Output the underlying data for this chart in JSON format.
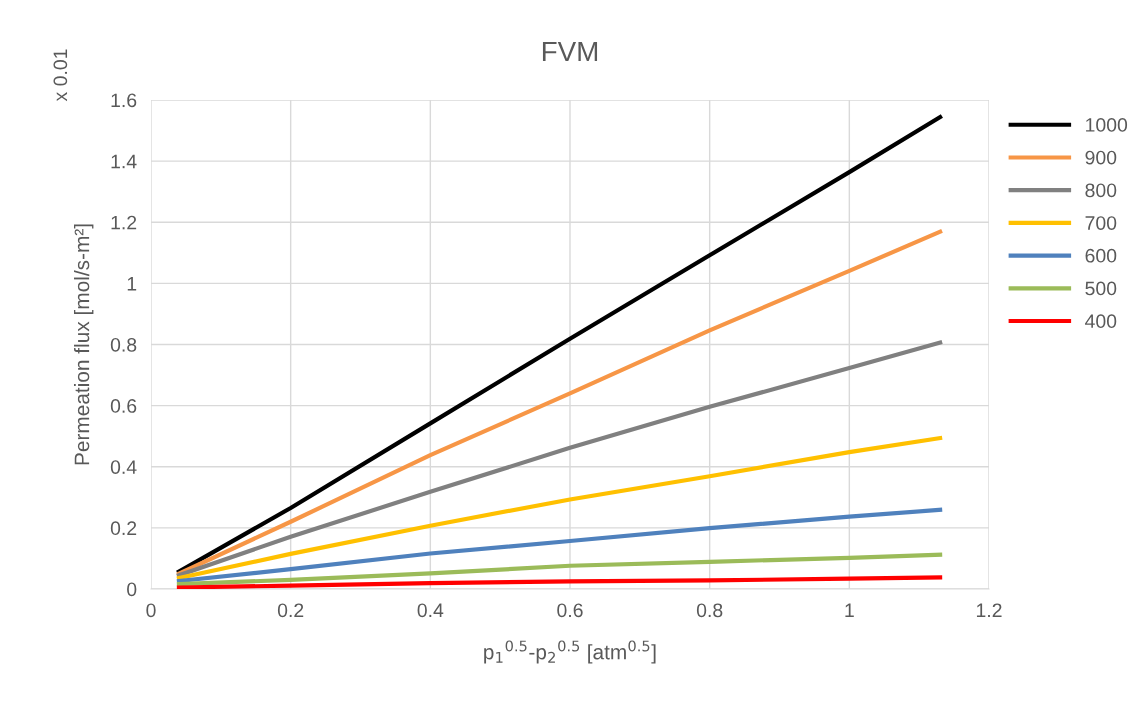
{
  "chart_data": {
    "type": "line",
    "title": "FVM",
    "xlabel": "p$_{1}$$^{0.5}$-p$_{2}$$^{0.5}$ [atm$^{0.5}$]",
    "ylabel": "Permeation flux [mol/s-m²]",
    "annotations": [
      "x 0.01"
    ],
    "x": [
      0.04,
      0.2,
      0.4,
      0.6,
      0.8,
      1,
      1.13
    ],
    "xlim": [
      0,
      1.2
    ],
    "xticks": [
      0,
      0.2,
      0.4,
      0.6,
      0.8,
      1,
      1.2
    ],
    "ylim": [
      0,
      1.6
    ],
    "yticks": [
      0,
      0.2,
      0.4,
      0.6,
      0.8,
      1,
      1.2,
      1.4,
      1.6
    ],
    "grid": true,
    "legend": "right",
    "line_style": "solid",
    "marker": "none",
    "series": [
      {
        "name": "1000",
        "color": "#000000",
        "values": [
          0.057,
          0.265,
          0.542,
          0.819,
          1.092,
          1.364,
          1.544
        ]
      },
      {
        "name": "900",
        "color": "#f79646",
        "values": [
          0.05,
          0.22,
          0.438,
          0.64,
          0.846,
          1.041,
          1.169
        ]
      },
      {
        "name": "800",
        "color": "#808080",
        "values": [
          0.045,
          0.171,
          0.318,
          0.462,
          0.596,
          0.723,
          0.806
        ]
      },
      {
        "name": "700",
        "color": "#ffc000",
        "values": [
          0.036,
          0.115,
          0.207,
          0.293,
          0.369,
          0.448,
          0.494
        ]
      },
      {
        "name": "600",
        "color": "#4f81bd",
        "values": [
          0.026,
          0.065,
          0.116,
          0.157,
          0.199,
          0.237,
          0.259
        ]
      },
      {
        "name": "500",
        "color": "#9bbb59",
        "values": [
          0.016,
          0.03,
          0.051,
          0.076,
          0.089,
          0.102,
          0.112
        ]
      },
      {
        "name": "400",
        "color": "#ff0000",
        "values": [
          0.005,
          0.011,
          0.019,
          0.025,
          0.028,
          0.034,
          0.038
        ]
      }
    ]
  }
}
